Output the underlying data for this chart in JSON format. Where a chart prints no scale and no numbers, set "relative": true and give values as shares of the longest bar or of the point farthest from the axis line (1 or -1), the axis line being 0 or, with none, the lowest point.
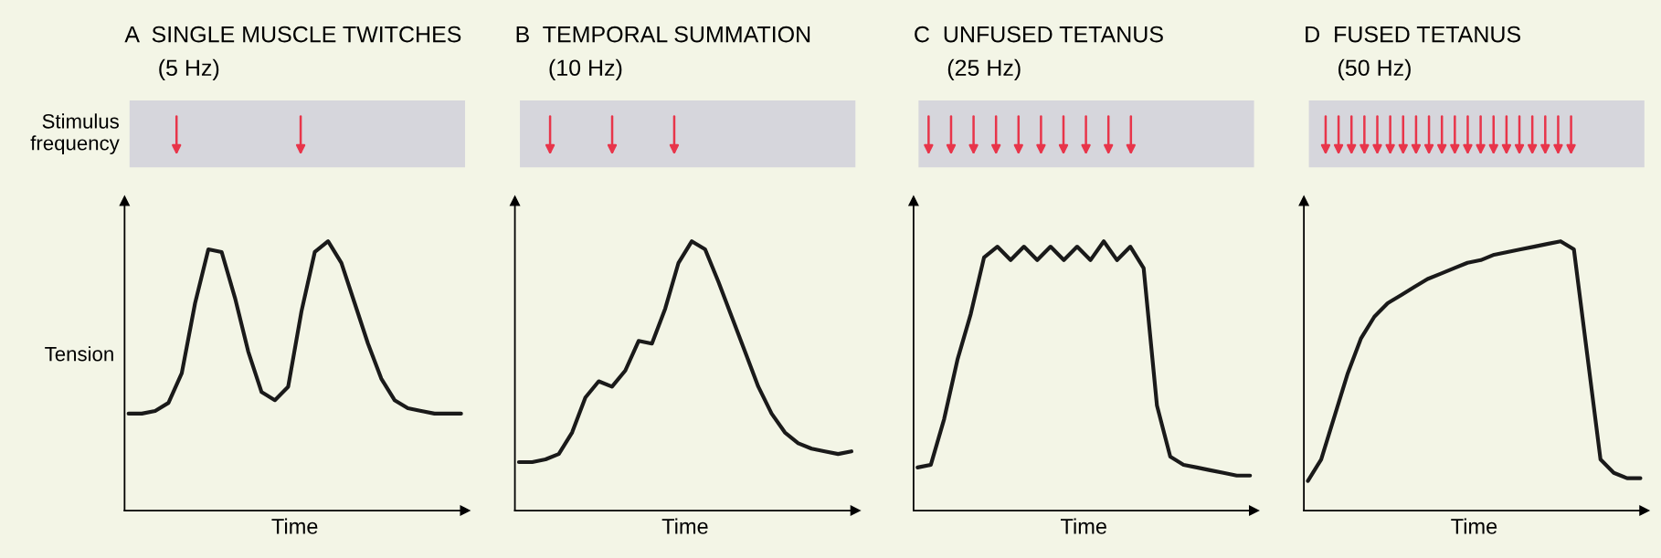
{
  "chart_data": [
    {
      "type": "line",
      "title": "A  SINGLE MUSCLE TWITCHES",
      "subtitle": "(5 Hz)",
      "xlabel": "Time",
      "ylabel": "Tension",
      "annotations": [
        "Stimulus frequency"
      ],
      "relative": true,
      "tick_labels": false,
      "categories": [
        null,
        null,
        null,
        null,
        null,
        null,
        null,
        null,
        null,
        null,
        null,
        null,
        null,
        null,
        null,
        null,
        null,
        null,
        null,
        null,
        null,
        null,
        null,
        null,
        null,
        null
      ],
      "series": [
        {
          "color": "#1a1a1a",
          "values": [
            0.36,
            0.36,
            0.37,
            0.4,
            0.51,
            0.77,
            0.97,
            0.96,
            0.79,
            0.59,
            0.44,
            0.41,
            0.46,
            0.74,
            0.96,
            1.0,
            0.92,
            0.77,
            0.62,
            0.49,
            0.41,
            0.38,
            0.37,
            0.36,
            0.36,
            0.36
          ]
        }
      ]
    },
    {
      "type": "line",
      "title": "B  TEMPORAL SUMMATION",
      "subtitle": "(10 Hz)",
      "xlabel": "Time",
      "relative": true,
      "tick_labels": false,
      "categories": [
        null,
        null,
        null,
        null,
        null,
        null,
        null,
        null,
        null,
        null,
        null,
        null,
        null,
        null,
        null,
        null,
        null,
        null,
        null,
        null,
        null,
        null,
        null,
        null,
        null,
        null
      ],
      "series": [
        {
          "color": "#1a1a1a",
          "values": [
            0.18,
            0.18,
            0.19,
            0.21,
            0.29,
            0.42,
            0.48,
            0.46,
            0.52,
            0.63,
            0.62,
            0.75,
            0.92,
            1.0,
            0.97,
            0.85,
            0.72,
            0.59,
            0.46,
            0.36,
            0.29,
            0.25,
            0.23,
            0.22,
            0.21,
            0.22
          ]
        }
      ]
    },
    {
      "type": "line",
      "title": "C  UNFUSED TETANUS",
      "subtitle": "(25 Hz)",
      "xlabel": "Time",
      "relative": true,
      "tick_labels": false,
      "categories": [
        null,
        null,
        null,
        null,
        null,
        null,
        null,
        null,
        null,
        null,
        null,
        null,
        null,
        null,
        null,
        null,
        null,
        null,
        null,
        null,
        null,
        null,
        null,
        null,
        null,
        null
      ],
      "series": [
        {
          "color": "#1a1a1a",
          "values": [
            0.16,
            0.17,
            0.34,
            0.56,
            0.73,
            0.94,
            0.98,
            0.93,
            0.98,
            0.93,
            0.98,
            0.93,
            0.98,
            0.93,
            1.0,
            0.93,
            0.98,
            0.9,
            0.39,
            0.2,
            0.17,
            0.16,
            0.15,
            0.14,
            0.13,
            0.13
          ]
        }
      ]
    },
    {
      "type": "line",
      "title": "D  FUSED TETANUS",
      "subtitle": "(50 Hz)",
      "xlabel": "Time",
      "relative": true,
      "tick_labels": false,
      "categories": [
        null,
        null,
        null,
        null,
        null,
        null,
        null,
        null,
        null,
        null,
        null,
        null,
        null,
        null,
        null,
        null,
        null,
        null,
        null,
        null,
        null,
        null,
        null,
        null,
        null,
        null
      ],
      "series": [
        {
          "color": "#1a1a1a",
          "values": [
            0.11,
            0.19,
            0.35,
            0.51,
            0.64,
            0.72,
            0.77,
            0.8,
            0.83,
            0.86,
            0.88,
            0.9,
            0.92,
            0.93,
            0.95,
            0.96,
            0.97,
            0.98,
            0.99,
            1.0,
            0.97,
            0.58,
            0.19,
            0.14,
            0.12,
            0.12
          ]
        }
      ]
    }
  ]
}
